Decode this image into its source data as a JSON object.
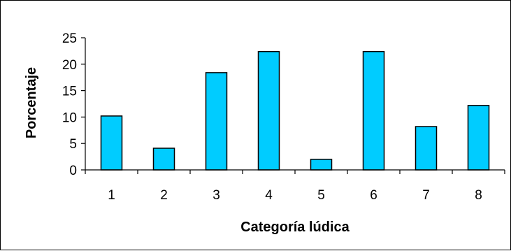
{
  "chart_data": {
    "type": "bar",
    "title": "",
    "xlabel": "Categoría lúdica",
    "ylabel": "Porcentaje",
    "categories": [
      "1",
      "2",
      "3",
      "4",
      "5",
      "6",
      "7",
      "8"
    ],
    "values": [
      10.2,
      4.1,
      18.4,
      22.4,
      2.0,
      22.4,
      8.2,
      12.2
    ],
    "ylim": [
      0,
      25
    ],
    "yticks": [
      "0",
      "5",
      "10",
      "15",
      "20",
      "25"
    ],
    "grid": false,
    "legend": "none",
    "colors": {
      "bar_fill": "#00CCFF",
      "bar_stroke": "#000000",
      "axis": "#000000"
    }
  }
}
